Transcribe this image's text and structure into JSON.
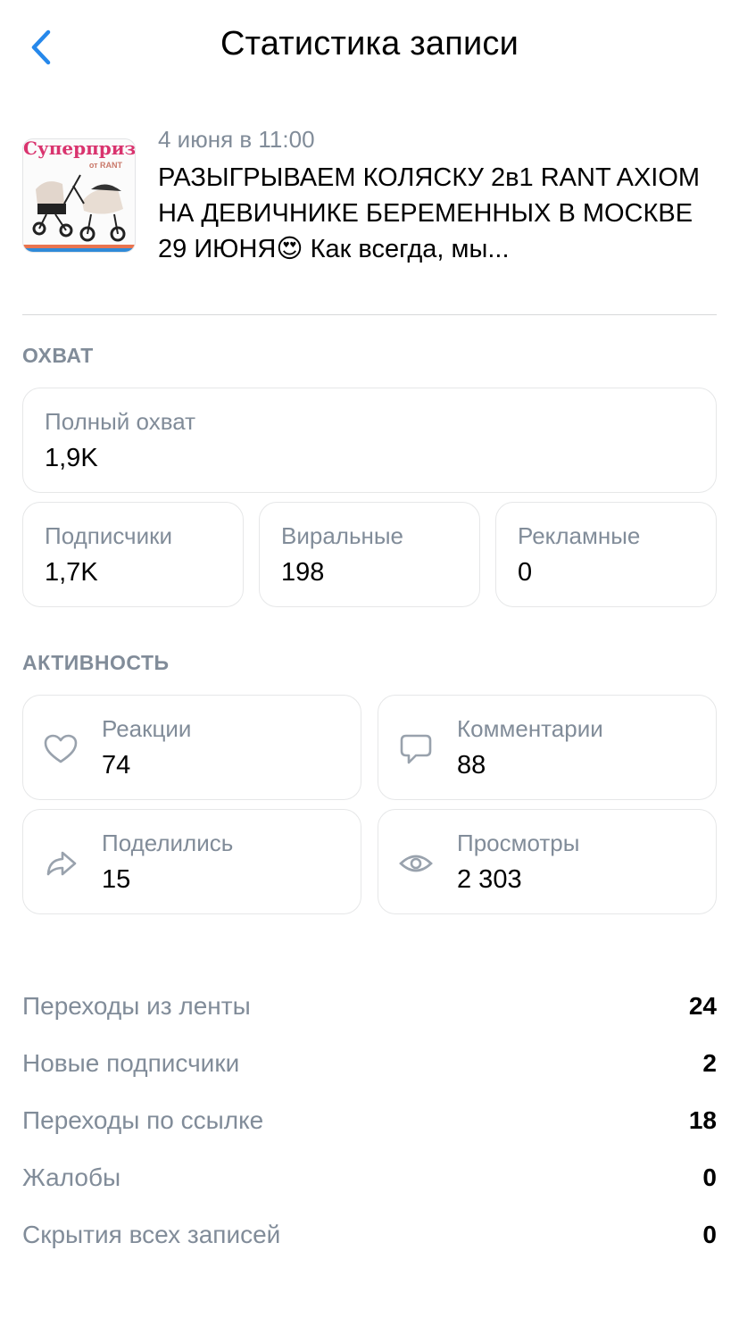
{
  "header": {
    "title": "Статистика записи",
    "back_icon": "chevron-left-icon",
    "accent": "#2688eb"
  },
  "post": {
    "thumbnail_text": "Суперприз",
    "thumbnail_subtext": "от RANT",
    "date": "4 июня в 11:00",
    "text": "РАЗЫГРЫВАЕМ КОЛЯСКУ 2в1 RANT AXIOM НА ДЕВИЧНИКЕ БЕРЕМЕННЫХ В МОСКВЕ 29 ИЮНЯ😍 Как всегда, мы..."
  },
  "reach": {
    "section_title": "ОХВАТ",
    "total": {
      "label": "Полный охват",
      "value": "1,9K"
    },
    "items": [
      {
        "label": "Подписчики",
        "value": "1,7K"
      },
      {
        "label": "Виральные",
        "value": "198"
      },
      {
        "label": "Рекламные",
        "value": "0"
      }
    ]
  },
  "activity": {
    "section_title": "АКТИВНОСТЬ",
    "items": [
      {
        "label": "Реакции",
        "value": "74",
        "icon": "heart-icon"
      },
      {
        "label": "Комментарии",
        "value": "88",
        "icon": "comment-icon"
      },
      {
        "label": "Поделились",
        "value": "15",
        "icon": "share-icon"
      },
      {
        "label": "Просмотры",
        "value": "2 303",
        "icon": "eye-icon"
      }
    ]
  },
  "stats": [
    {
      "label": "Переходы из ленты",
      "value": "24"
    },
    {
      "label": "Новые подписчики",
      "value": "2"
    },
    {
      "label": "Переходы по ссылке",
      "value": "18"
    },
    {
      "label": "Жалобы",
      "value": "0"
    },
    {
      "label": "Скрытия всех записей",
      "value": "0"
    }
  ]
}
